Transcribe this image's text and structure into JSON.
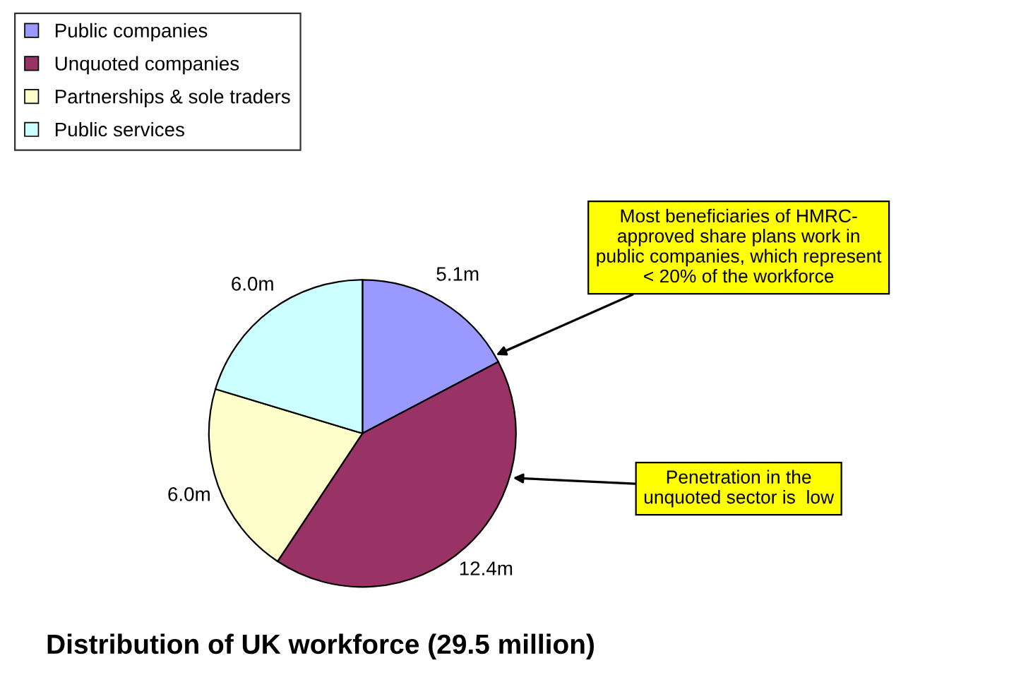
{
  "chart_data": {
    "type": "pie",
    "title": "Distribution of UK workforce (29.5 million)",
    "categories": [
      "Public companies",
      "Unquoted companies",
      "Partnerships & sole traders",
      "Public services"
    ],
    "values": [
      5.1,
      12.4,
      6.0,
      6.0
    ],
    "value_labels": [
      "5.1m",
      "12.4m",
      "6.0m",
      "6.0m"
    ],
    "colors": [
      "#9999ff",
      "#993366",
      "#ffffcc",
      "#ccffff"
    ],
    "legend": "top left",
    "annotations": [
      "Most beneficiaries of HMRC-\napproved share plans work in\npublic companies, which represent\n< 20% of the workforce",
      "Penetration in the\nunquoted sector is  low"
    ]
  }
}
